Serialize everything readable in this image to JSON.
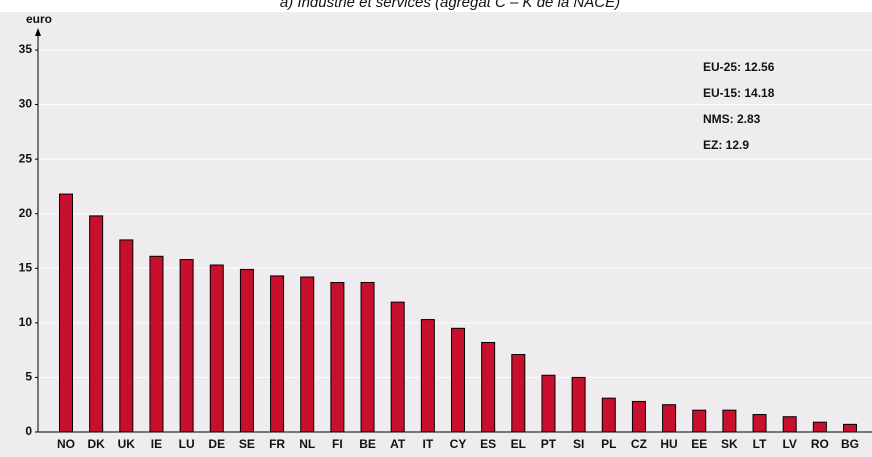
{
  "chart_data": {
    "type": "bar",
    "title": "a) Industrie et services (agrégat C – K de la NACE)",
    "y_label": "euro",
    "categories": [
      "NO",
      "DK",
      "UK",
      "IE",
      "LU",
      "DE",
      "SE",
      "FR",
      "NL",
      "FI",
      "BE",
      "AT",
      "IT",
      "CY",
      "ES",
      "EL",
      "PT",
      "SI",
      "PL",
      "CZ",
      "HU",
      "EE",
      "SK",
      "LT",
      "LV",
      "RO",
      "BG"
    ],
    "values": [
      21.8,
      19.8,
      17.6,
      16.1,
      15.8,
      15.3,
      14.9,
      14.3,
      14.2,
      13.7,
      13.7,
      11.9,
      10.3,
      9.5,
      8.2,
      7.1,
      5.2,
      5.0,
      3.1,
      2.8,
      2.5,
      2.0,
      2.0,
      1.6,
      1.4,
      0.9,
      0.7
    ],
    "color": "#c8102e",
    "ylim": [
      0,
      35
    ],
    "yticks": [
      0,
      5,
      10,
      15,
      20,
      25,
      30,
      35
    ],
    "grid": true,
    "annotations": [
      "EU-25: 12.56",
      "EU-15: 14.18",
      "NMS: 2.83",
      "EZ: 12.9"
    ]
  }
}
